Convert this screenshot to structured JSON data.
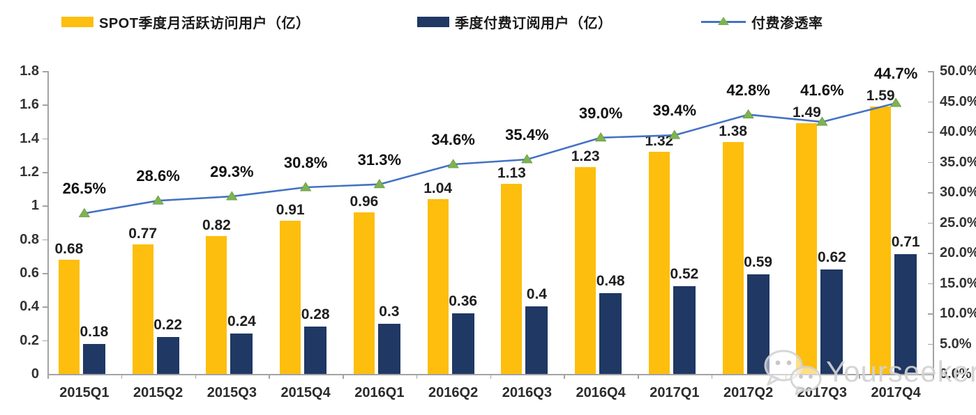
{
  "chart_data": {
    "type": "combo-bar-line",
    "categories": [
      "2015Q1",
      "2015Q2",
      "2015Q3",
      "2015Q4",
      "2016Q1",
      "2016Q2",
      "2016Q3",
      "2016Q4",
      "2017Q1",
      "2017Q2",
      "2017Q3",
      "2017Q4"
    ],
    "series": [
      {
        "name": "SPOT季度月活跃访问用户（亿）",
        "type": "bar",
        "axis": "left",
        "color": "#FDBE0D",
        "values": [
          0.68,
          0.77,
          0.82,
          0.91,
          0.96,
          1.04,
          1.13,
          1.23,
          1.32,
          1.38,
          1.49,
          1.59
        ],
        "labels": [
          "0.68",
          "0.77",
          "0.82",
          "0.91",
          "0.96",
          "1.04",
          "1.13",
          "1.23",
          "1.32",
          "1.38",
          "1.49",
          "1.59"
        ]
      },
      {
        "name": "季度付费订阅用户（亿）",
        "type": "bar",
        "axis": "left",
        "color": "#1F3864",
        "values": [
          0.18,
          0.22,
          0.24,
          0.28,
          0.3,
          0.36,
          0.4,
          0.48,
          0.52,
          0.59,
          0.62,
          0.71
        ],
        "labels": [
          "0.18",
          "0.22",
          "0.24",
          "0.28",
          "0.3",
          "0.36",
          "0.4",
          "0.48",
          "0.52",
          "0.59",
          "0.62",
          "0.71"
        ]
      },
      {
        "name": "付费渗透率",
        "type": "line",
        "axis": "right",
        "color": "#4472C4",
        "marker_color": "#7EB34F",
        "values": [
          26.5,
          28.6,
          29.3,
          30.8,
          31.3,
          34.6,
          35.4,
          39.0,
          39.4,
          42.8,
          41.6,
          44.7
        ],
        "labels": [
          "26.5%",
          "28.6%",
          "29.3%",
          "30.8%",
          "31.3%",
          "34.6%",
          "35.4%",
          "39.0%",
          "39.4%",
          "42.8%",
          "41.6%",
          "44.7%"
        ]
      }
    ],
    "left_axis": {
      "min": 0,
      "max": 1.8,
      "ticks": [
        "0",
        "0.2",
        "0.4",
        "0.6",
        "0.8",
        "1",
        "1.2",
        "1.4",
        "1.6",
        "1.8"
      ]
    },
    "right_axis": {
      "min": 0,
      "max": 50,
      "ticks": [
        "0.0%",
        "5.0%",
        "10.0%",
        "15.0%",
        "20.0%",
        "25.0%",
        "30.0%",
        "35.0%",
        "40.0%",
        "45.0%",
        "50.0%"
      ]
    },
    "grid": false,
    "legend_position": "top"
  },
  "watermark": {
    "text": "Yourseeker",
    "icon": "wechat-icon"
  }
}
